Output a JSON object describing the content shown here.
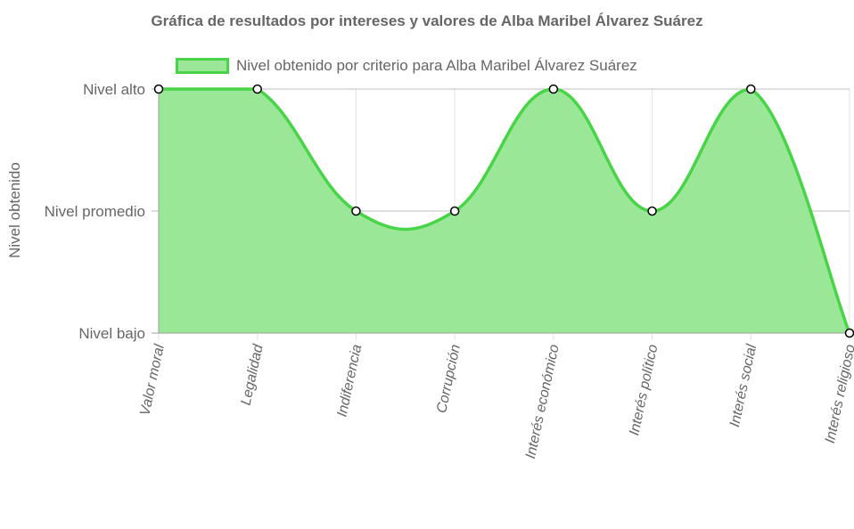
{
  "chart_data": {
    "type": "area",
    "title": "Gráfica de resultados por intereses y valores de Alba Maribel Álvarez Suárez",
    "ylabel": "Nivel obtenido",
    "xlabel": "",
    "categories": [
      "Valor moral",
      "Legalidad",
      "Indiferencia",
      "Corrupción",
      "Interés económico",
      "Interés político",
      "Interés social",
      "Interés religioso"
    ],
    "y_tick_labels": [
      "Nivel bajo",
      "Nivel promedio",
      "Nivel alto"
    ],
    "ylim": [
      0,
      2
    ],
    "series": [
      {
        "name": "Nivel obtenido por criterio para Alba Maribel Álvarez Suárez",
        "values": [
          2,
          2,
          1,
          1,
          2,
          1,
          2,
          0
        ]
      }
    ],
    "legend_position": "top",
    "grid": true,
    "colors": {
      "line": "#47d447",
      "fill": "#9ae897",
      "point_fill": "#ffffff",
      "point_stroke": "#000000",
      "grid": "#e3e3e3",
      "text": "#666666"
    }
  }
}
